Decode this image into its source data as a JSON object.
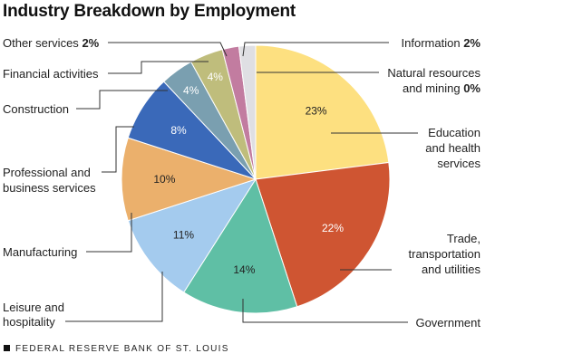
{
  "chart_data": {
    "type": "pie",
    "title": "Industry Breakdown by Employment",
    "slices": [
      {
        "label": "Education and health services",
        "value": 23,
        "pct_label": "23%",
        "color": "#fde080",
        "label_color": "#222222"
      },
      {
        "label": "Trade, transportation and utilities",
        "value": 22,
        "pct_label": "22%",
        "color": "#cf5532",
        "label_color": "#ffffff"
      },
      {
        "label": "Government",
        "value": 14,
        "pct_label": "14%",
        "color": "#5fbfa5",
        "label_color": "#222222"
      },
      {
        "label": "Leisure and hospitality",
        "value": 11,
        "pct_label": "11%",
        "color": "#a4cbee",
        "label_color": "#222222"
      },
      {
        "label": "Manufacturing",
        "value": 10,
        "pct_label": "10%",
        "color": "#ebb06c",
        "label_color": "#222222"
      },
      {
        "label": "Professional and business services",
        "value": 8,
        "pct_label": "8%",
        "color": "#3a69b9",
        "label_color": "#ffffff"
      },
      {
        "label": "Construction",
        "value": 4,
        "pct_label": "4%",
        "color": "#7a9fb0",
        "label_color": "#ffffff"
      },
      {
        "label": "Financial activities",
        "value": 4,
        "pct_label": "4%",
        "color": "#bfbd7c",
        "label_color": "#ffffff"
      },
      {
        "label": "Other services",
        "value": 2,
        "pct_label": "2%",
        "color": "#c27ca0",
        "label_color": "#222222"
      },
      {
        "label": "Information",
        "value": 2,
        "pct_label": "2%",
        "color": "#dfdfe3",
        "label_color": "#222222"
      },
      {
        "label": "Natural resources and mining",
        "value": 0,
        "pct_label": "0%",
        "color": "#ffffff",
        "label_color": "#222222"
      }
    ]
  },
  "callouts": {
    "other_services": {
      "name": "Other services",
      "value": "2%"
    },
    "financial": {
      "name": "Financial activities"
    },
    "construction": {
      "name": "Construction"
    },
    "professional": {
      "line1": "Professional and",
      "line2": "business services"
    },
    "manufacturing": {
      "name": "Manufacturing"
    },
    "leisure": {
      "line1": "Leisure and",
      "line2": "hospitality"
    },
    "information": {
      "name": "Information",
      "value": "2%"
    },
    "natural": {
      "line1": "Natural resources",
      "line2_name": "and mining",
      "value": "0%"
    },
    "education": {
      "line1": "Education",
      "line2": "and health",
      "line3": "services"
    },
    "trade": {
      "line1": "Trade,",
      "line2": "transportation",
      "line3": "and utilities"
    },
    "government": {
      "name": "Government"
    }
  },
  "footer": "FEDERAL RESERVE BANK OF ST. LOUIS"
}
